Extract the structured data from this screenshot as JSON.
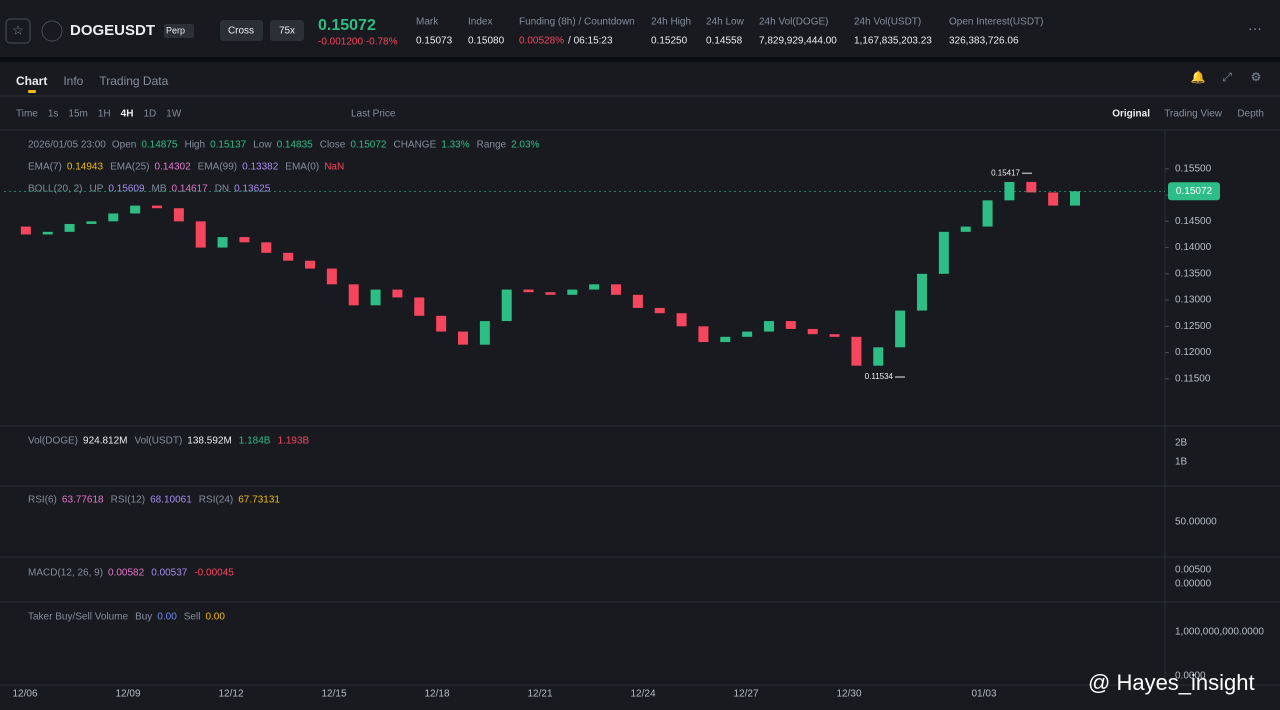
{
  "header": {
    "symbol": "DOGEUSDT",
    "contract": "Perp",
    "margin": "Cross",
    "leverage": "75x",
    "price": "0.15072",
    "change": "-0.001200 -0.78%",
    "stats": [
      {
        "label": "Mark",
        "value": "0.15073"
      },
      {
        "label": "Index",
        "value": "0.15080"
      },
      {
        "label": "Funding (8h) / Countdown",
        "value": "0.00528%",
        "extra": "/ 06:15:23"
      },
      {
        "label": "24h High",
        "value": "0.15250"
      },
      {
        "label": "24h Low",
        "value": "0.14558"
      },
      {
        "label": "24h Vol(DOGE)",
        "value": "7,829,929,444.00"
      },
      {
        "label": "24h Vol(USDT)",
        "value": "1,167,835,203.23"
      },
      {
        "label": "Open Interest(USDT)",
        "value": "326,383,726.06"
      }
    ]
  },
  "tabs": [
    "Chart",
    "Info",
    "Trading Data"
  ],
  "toolbar": {
    "intervals": [
      "Time",
      "1s",
      "15m",
      "1H",
      "4H",
      "1D",
      "1W"
    ],
    "price_type": "Last Price",
    "views": [
      "Original",
      "Trading View",
      "Depth"
    ]
  },
  "legend": {
    "date": "2026/01/05 23:00",
    "ohlc": [
      {
        "label": "Open",
        "value": "0.14875"
      },
      {
        "label": "High",
        "value": "0.15137"
      },
      {
        "label": "Low",
        "value": "0.14835"
      },
      {
        "label": "Close",
        "value": "0.15072"
      },
      {
        "label": "CHANGE",
        "value": "1.33%"
      },
      {
        "label": "Range",
        "value": "2.03%"
      }
    ],
    "ema": [
      {
        "label": "EMA(7)",
        "value": "0.14943",
        "color": "#f0b90b"
      },
      {
        "label": "EMA(25)",
        "value": "0.14302",
        "color": "#e478c8"
      },
      {
        "label": "EMA(99)",
        "value": "0.13382",
        "color": "#a98cf0"
      },
      {
        "label": "EMA(0)",
        "value": "NaN",
        "color": "#f6465d"
      }
    ],
    "boll": [
      {
        "label": "BOLL(20, 2)",
        "value": ""
      },
      {
        "label": "UP",
        "value": "0.15609",
        "color": "#a98cf0"
      },
      {
        "label": "MB",
        "value": "0.14617",
        "color": "#e478c8"
      },
      {
        "label": "DN",
        "value": "0.13625",
        "color": "#a98cf0"
      }
    ]
  },
  "chart_data": {
    "type": "candlestick",
    "values": [
      0.144,
      0.1425,
      0.143,
      0.1445,
      0.145,
      0.1465,
      0.148,
      0.1475,
      0.145,
      0.14,
      0.142,
      0.141,
      0.139,
      0.1375,
      0.136,
      0.133,
      0.129,
      0.132,
      0.1305,
      0.127,
      0.124,
      0.1215,
      0.126,
      0.132,
      0.1315,
      0.131,
      0.132,
      0.133,
      0.131,
      0.1285,
      0.1275,
      0.125,
      0.122,
      0.123,
      0.124,
      0.126,
      0.1245,
      0.1235,
      0.123,
      0.1175,
      0.121,
      0.128,
      0.135,
      0.143,
      0.144,
      0.149,
      0.1525,
      0.1505,
      0.148,
      0.15072
    ],
    "up_color": "#2ebd85",
    "down_color": "#f6465d",
    "ylim": [
      0.1062,
      0.1624
    ],
    "yticks": [
      {
        "value": 0.155,
        "label": "0.15500"
      },
      {
        "value": 0.15,
        "label": "0.15000"
      },
      {
        "value": 0.145,
        "label": "0.14500"
      },
      {
        "value": 0.14,
        "label": "0.14000"
      },
      {
        "value": 0.135,
        "label": "0.13500"
      },
      {
        "value": 0.13,
        "label": "0.13000"
      },
      {
        "value": 0.125,
        "label": "0.12500"
      },
      {
        "value": 0.12,
        "label": "0.12000"
      },
      {
        "value": 0.115,
        "label": "0.11500"
      }
    ],
    "last_price": {
      "value": 0.15072,
      "label": "0.15072"
    },
    "annotations": [
      {
        "value": 0.15417,
        "label": "0.15417"
      },
      {
        "value": 0.11534,
        "label": "0.11534"
      }
    ],
    "x_labels": [
      "12/06",
      "12/09",
      "12/12",
      "12/15",
      "12/18",
      "12/21",
      "12/24",
      "12/27",
      "12/30",
      "01/03"
    ]
  },
  "panes": [
    {
      "items": [
        {
          "label": "Vol(DOGE)",
          "value": "924.812M",
          "color": "#eaecef"
        },
        {
          "label": "Vol(USDT)",
          "value": "138.592M",
          "color": "#eaecef"
        },
        {
          "label": "",
          "value": "1.184B",
          "color": "#2ebd85"
        },
        {
          "label": "",
          "value": "1.193B",
          "color": "#f6465d"
        }
      ],
      "ticks": [
        "2B",
        "1B"
      ]
    },
    {
      "items": [
        {
          "label": "RSI(6)",
          "value": "63.77618",
          "color": "#e478c8"
        },
        {
          "label": "RSI(12)",
          "value": "68.10061",
          "color": "#a98cf0"
        },
        {
          "label": "RSI(24)",
          "value": "67.73131",
          "color": "#f0b90b"
        }
      ],
      "ticks": [
        "50.00000"
      ]
    },
    {
      "items": [
        {
          "label": "MACD(12, 26, 9)",
          "value": "0.00582",
          "color": "#e478c8"
        },
        {
          "label": "",
          "value": "0.00537",
          "color": "#a98cf0"
        },
        {
          "label": "",
          "value": "-0.00045",
          "color": "#f6465d"
        }
      ],
      "ticks": [
        "0.00500",
        "0.00000"
      ]
    },
    {
      "items": [
        {
          "label": "Taker Buy/Sell Volume",
          "value": "",
          "color": "#eaecef"
        },
        {
          "label": "Buy",
          "value": "0.00",
          "color": "#6f8cf0"
        },
        {
          "label": "Sell",
          "value": "0.00",
          "color": "#f0b90b"
        }
      ],
      "ticks": [
        "1,000,000,000.0000",
        "0.0000"
      ]
    }
  ],
  "watermark": "@ Hayes_insight"
}
